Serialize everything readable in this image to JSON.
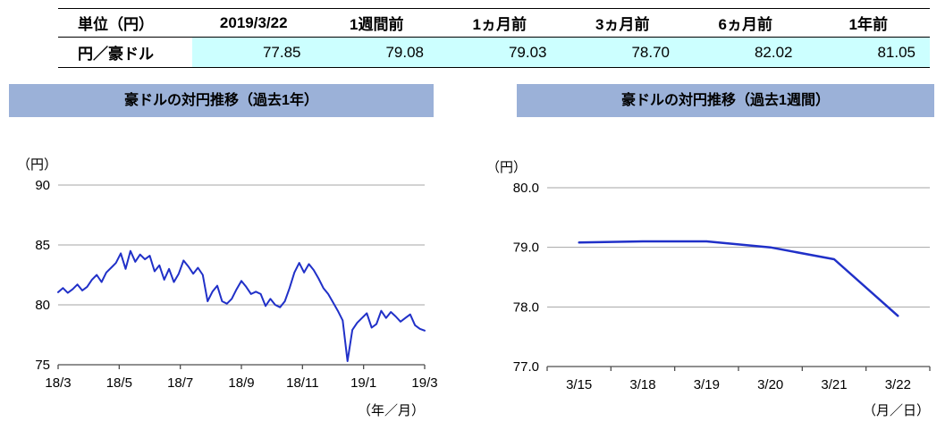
{
  "theme": {
    "title_bar_bg": "#9bb1d8",
    "table_highlight_bg": "#ccffff",
    "line_color": "#2030c8",
    "grid_color": "#a6a6a6",
    "axis_color": "#4d4d4d"
  },
  "table": {
    "headers": [
      "単位（円）",
      "2019/3/22",
      "1週間前",
      "1ヵ月前",
      "3ヵ月前",
      "6ヵ月前",
      "1年前"
    ],
    "row_label": "円／豪ドル",
    "values": [
      "77.85",
      "79.08",
      "79.03",
      "78.70",
      "82.02",
      "81.05"
    ]
  },
  "chart_data": [
    {
      "type": "line",
      "title": "豪ドルの対円推移（過去1年）",
      "ylabel": "（円）",
      "xlabel": "（年／月）",
      "ylim": [
        75,
        90
      ],
      "ytick_values": [
        75,
        80,
        85,
        90
      ],
      "ytick_labels": [
        "75",
        "80",
        "85",
        "90"
      ],
      "xtick_labels": [
        "18/3",
        "18/5",
        "18/7",
        "18/9",
        "18/11",
        "19/1",
        "19/3"
      ],
      "centered": false,
      "grid": true,
      "legend": false,
      "series": [
        {
          "name": "円／豪ドル",
          "values": [
            81.05,
            81.4,
            81.0,
            81.3,
            81.7,
            81.2,
            81.5,
            82.1,
            82.5,
            81.9,
            82.7,
            83.1,
            83.5,
            84.3,
            83.0,
            84.5,
            83.6,
            84.2,
            83.8,
            84.1,
            82.8,
            83.3,
            82.1,
            83.0,
            81.9,
            82.6,
            83.7,
            83.2,
            82.6,
            83.1,
            82.5,
            80.3,
            81.1,
            81.6,
            80.3,
            80.1,
            80.5,
            81.3,
            82.0,
            81.5,
            80.9,
            81.1,
            80.9,
            79.9,
            80.5,
            80.0,
            79.8,
            80.3,
            81.4,
            82.7,
            83.5,
            82.7,
            83.4,
            82.9,
            82.2,
            81.4,
            80.9,
            80.2,
            79.5,
            78.7,
            75.3,
            77.9,
            78.5,
            78.9,
            79.3,
            78.1,
            78.4,
            79.5,
            78.9,
            79.4,
            79.03,
            78.6,
            78.9,
            79.2,
            78.3,
            78.0,
            77.85
          ]
        }
      ]
    },
    {
      "type": "line",
      "title": "豪ドルの対円推移（過去1週間）",
      "ylabel": "（円）",
      "xlabel": "（月／日）",
      "ylim": [
        77,
        80
      ],
      "ytick_values": [
        77,
        78,
        79,
        80
      ],
      "ytick_labels": [
        "77.0",
        "78.0",
        "79.0",
        "80.0"
      ],
      "xtick_labels": [
        "3/15",
        "3/18",
        "3/19",
        "3/20",
        "3/21",
        "3/22"
      ],
      "centered": true,
      "grid": true,
      "legend": false,
      "series": [
        {
          "name": "円／豪ドル",
          "values": [
            79.08,
            79.1,
            79.1,
            79.0,
            78.8,
            77.85
          ]
        }
      ]
    }
  ]
}
